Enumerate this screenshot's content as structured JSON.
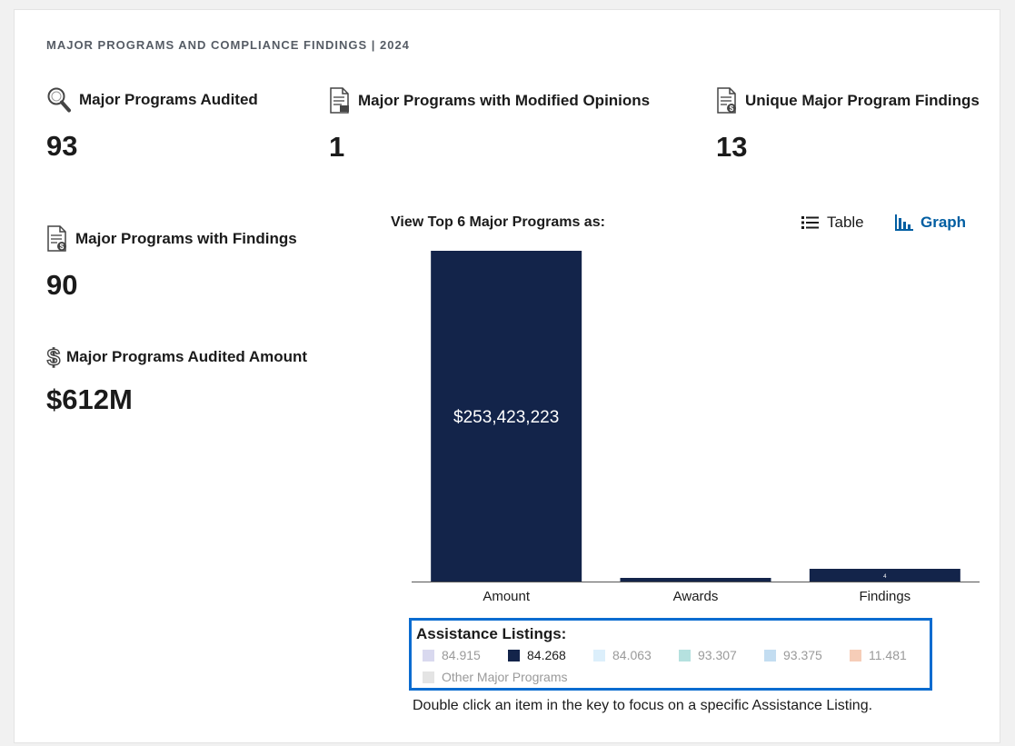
{
  "section": {
    "title": "MAJOR PROGRAMS AND COMPLIANCE FINDINGS | 2024"
  },
  "stats": {
    "audited": {
      "label": "Major Programs Audited",
      "value": "93",
      "icon": "magnifier-icon"
    },
    "modified": {
      "label": "Major Programs with Modified Opinions",
      "value": "1",
      "icon": "document-icon"
    },
    "unique_findings": {
      "label": "Unique Major Program Findings",
      "value": "13",
      "icon": "document-dollar-icon"
    },
    "with_findings": {
      "label": "Major Programs with Findings",
      "value": "90",
      "icon": "document-dollar-icon"
    },
    "amount": {
      "label": "Major Programs Audited Amount",
      "value": "$612M",
      "icon": "dollar-icon"
    }
  },
  "view": {
    "label": "View Top 6 Major Programs as:",
    "table_label": "Table",
    "graph_label": "Graph",
    "active": "Graph"
  },
  "chart_data": {
    "type": "bar",
    "categories": [
      "Amount",
      "Awards",
      "Findings"
    ],
    "series": [
      {
        "name": "84.268",
        "values": [
          253423223,
          2,
          4
        ]
      }
    ],
    "data_labels": [
      "$253,423,223",
      "",
      "4"
    ],
    "colors": {
      "bar": "#13244a"
    },
    "grid": false
  },
  "legend": {
    "title": "Assistance Listings:",
    "items": [
      {
        "label": "84.915",
        "color": "#d9d9ef",
        "active": false
      },
      {
        "label": "84.268",
        "color": "#13244a",
        "active": true
      },
      {
        "label": "84.063",
        "color": "#dceffb",
        "active": false
      },
      {
        "label": "93.307",
        "color": "#b5e1df",
        "active": false
      },
      {
        "label": "93.375",
        "color": "#c3ddf1",
        "active": false
      },
      {
        "label": "11.481",
        "color": "#f6cdb8",
        "active": false
      },
      {
        "label": "Other Major Programs",
        "color": "#e4e4e4",
        "active": false
      }
    ]
  },
  "hint": "Double click an item in the key to focus on a specific Assistance Listing."
}
